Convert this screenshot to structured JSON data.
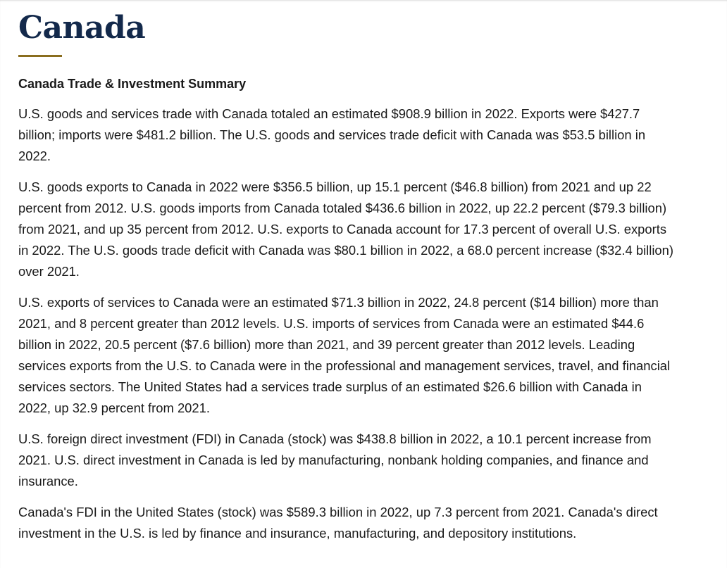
{
  "page": {
    "title": "Canada",
    "summary_heading": "Canada Trade & Investment Summary",
    "paragraphs": [
      "U.S. goods and services trade with Canada totaled an estimated $908.9 billion in 2022. Exports were $427.7 billion; imports were $481.2 billion. The U.S. goods and services trade deficit with Canada was $53.5 billion in 2022.",
      "U.S. goods exports to Canada in 2022 were $356.5 billion, up 15.1 percent ($46.8 billion) from 2021 and up 22 percent from 2012. U.S. goods imports from Canada totaled $436.6 billion in 2022, up 22.2 percent ($79.3 billion) from 2021, and up 35 percent from 2012. U.S. exports to Canada account for 17.3 percent of overall U.S. exports in 2022. The U.S. goods trade deficit with Canada was $80.1 billion in 2022, a 68.0 percent increase ($32.4 billion) over 2021.",
      "U.S. exports of services to Canada were an estimated $71.3 billion in 2022, 24.8 percent ($14 billion) more than 2021, and 8 percent greater than 2012 levels. U.S. imports of services from Canada were an estimated $44.6 billion in 2022, 20.5 percent ($7.6 billion) more than 2021, and 39 percent greater than 2012 levels. Leading services exports from the U.S. to Canada were in the professional and management services, travel, and financial services sectors. The United States had a services trade surplus of an estimated $26.6 billion with Canada in 2022, up 32.9 percent from 2021.",
      "U.S. foreign direct investment (FDI) in Canada (stock) was $438.8 billion in 2022, a 10.1 percent increase from 2021. U.S. direct investment in Canada is led by manufacturing, nonbank holding companies, and finance and insurance.",
      "Canada's FDI in the United States (stock) was $589.3 billion in 2022, up 7.3 percent from 2021. Canada's direct investment in the U.S. is led by finance and insurance, manufacturing, and depository institutions."
    ]
  },
  "colors": {
    "title": "#13294b",
    "rule": "#8a6d1e",
    "text": "#1a1a1a"
  }
}
